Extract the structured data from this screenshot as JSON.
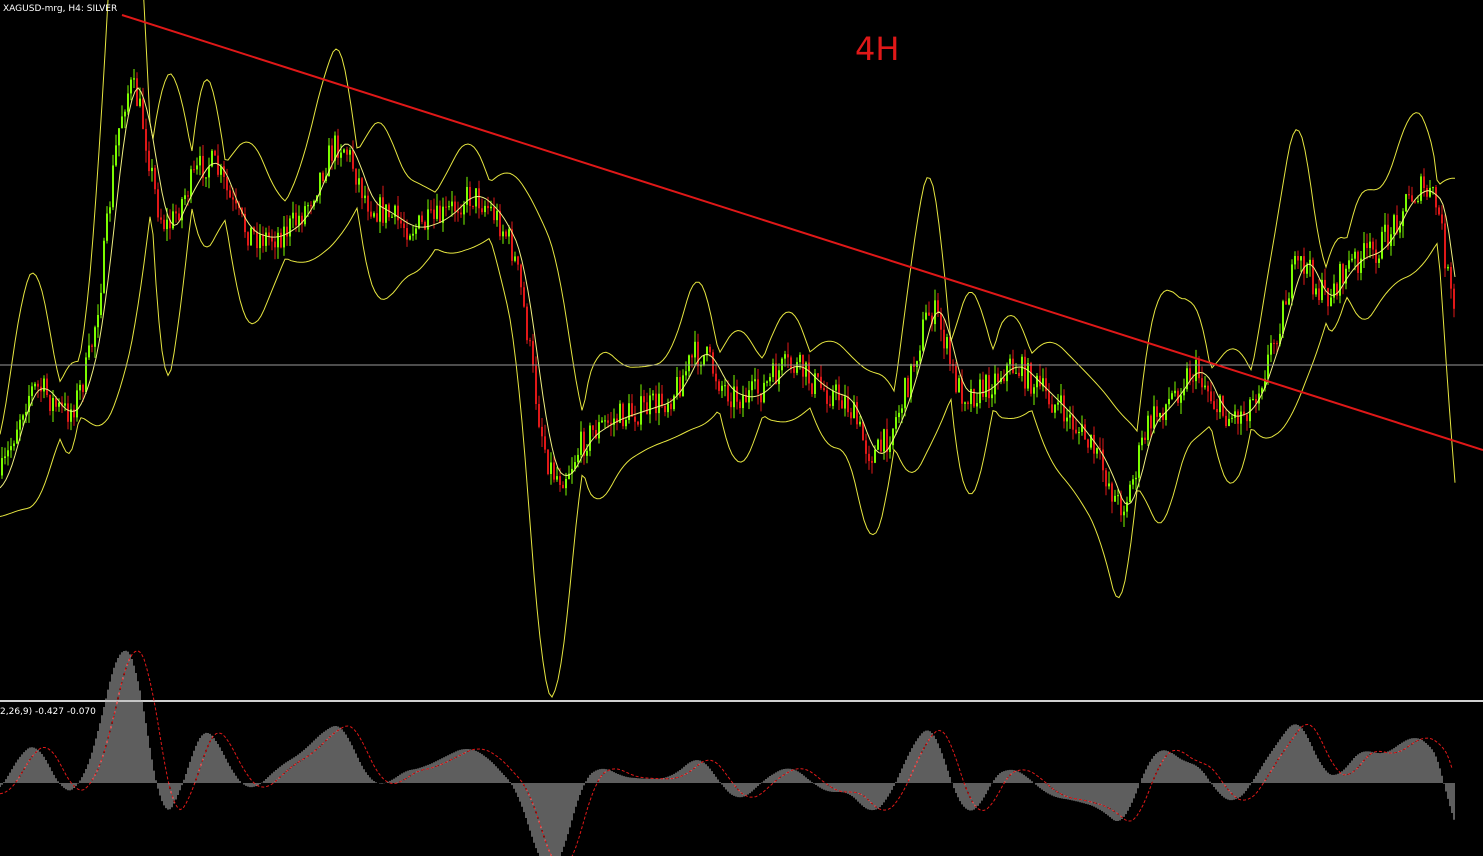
{
  "header": {
    "symbol": "XAGUSD-mrg, H4:  SILVER",
    "timeframe_note": "4H"
  },
  "indicator": {
    "label": "2,26,9) -0.427 -0.070"
  }
}
